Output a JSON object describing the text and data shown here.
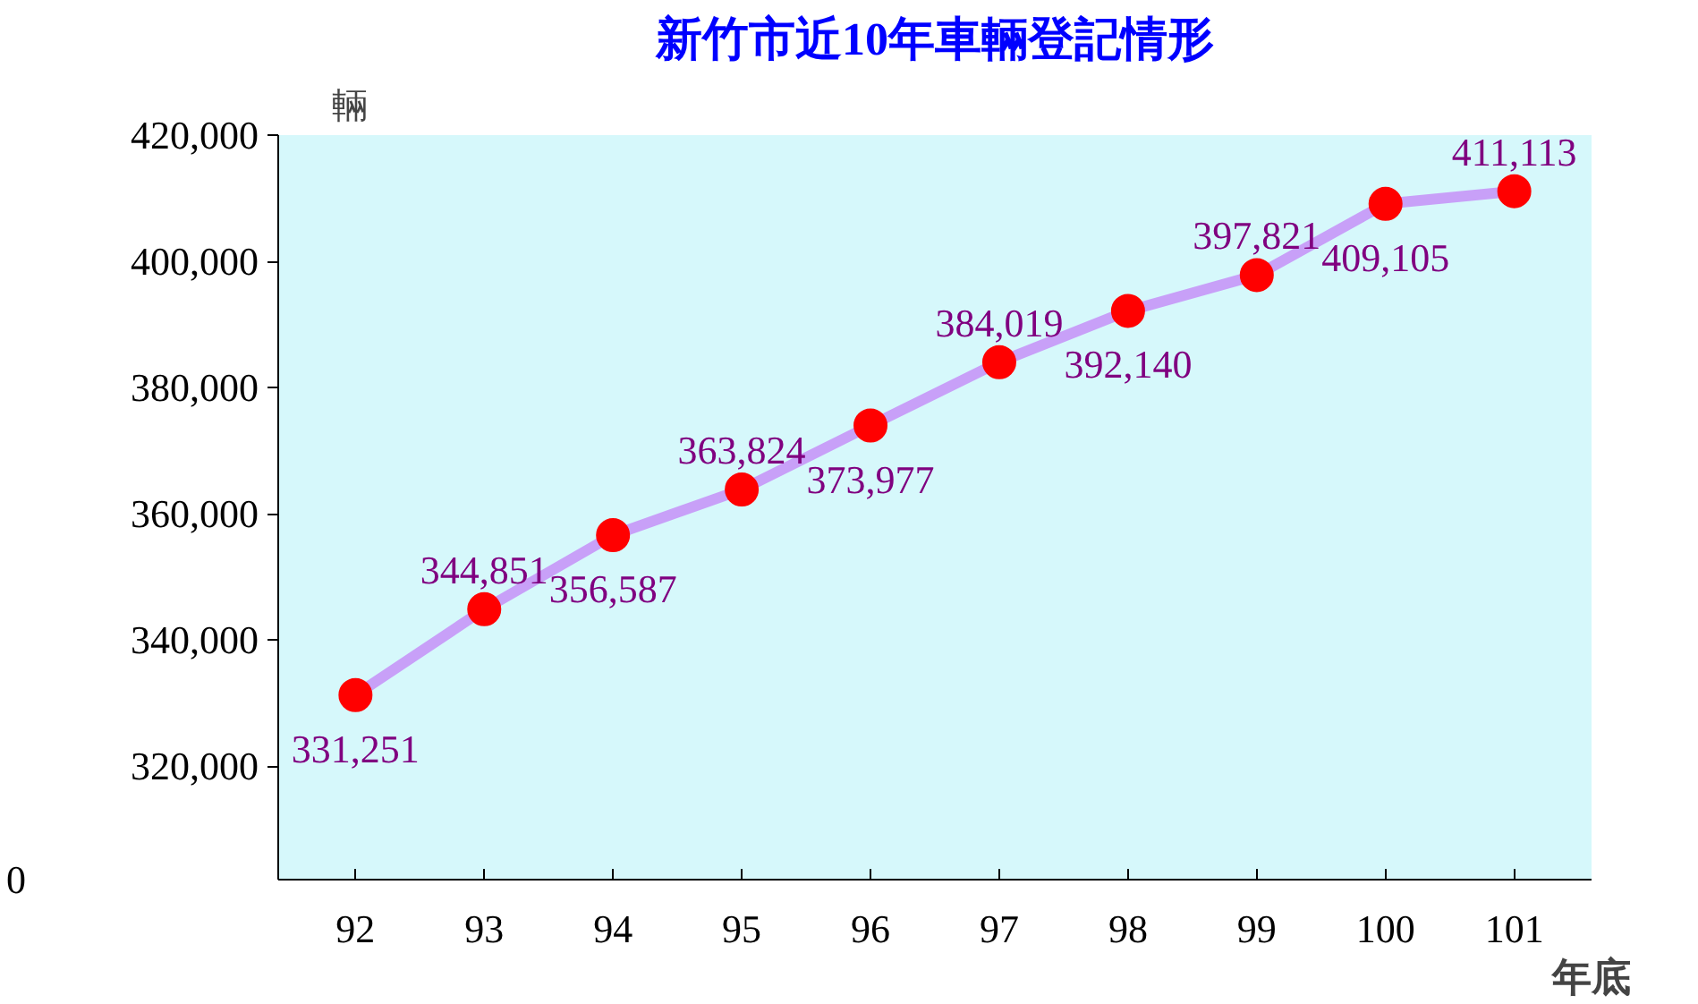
{
  "chart_data": {
    "type": "line",
    "title": "新竹市近10年車輛登記情形",
    "xlabel": "年底",
    "ylabel": "輛",
    "categories": [
      "92",
      "93",
      "94",
      "95",
      "96",
      "97",
      "98",
      "99",
      "100",
      "101"
    ],
    "series": [
      {
        "color": "#c8a0f8",
        "colors": [
          "#ff0000",
          "#ff0000",
          "#ff0000",
          "#ff0000",
          "#ff0000",
          "#ff0000",
          "#ff0000",
          "#ff0000",
          "#ff0000",
          "#ff0000"
        ],
        "values": [
          331251,
          344851,
          356587,
          363824,
          373977,
          384019,
          392140,
          397821,
          409105,
          411113
        ],
        "value_labels": [
          "331,251",
          "344,851",
          "356,587",
          "363,824",
          "373,977",
          "384,019",
          "392,140",
          "397,821",
          "409,105",
          "411,113"
        ]
      }
    ],
    "ylim": [
      302000,
      420000
    ],
    "yticks": [
      {
        "value": 320000,
        "label": "320,000"
      },
      {
        "value": 340000,
        "label": "340,000"
      },
      {
        "value": 360000,
        "label": "360,000"
      },
      {
        "value": 380000,
        "label": "380,000"
      },
      {
        "value": 400000,
        "label": "400,000"
      },
      {
        "value": 420000,
        "label": "420,000"
      }
    ],
    "annotations": [
      "0"
    ],
    "marker": "circle",
    "grid": false,
    "line_style": "solid"
  }
}
